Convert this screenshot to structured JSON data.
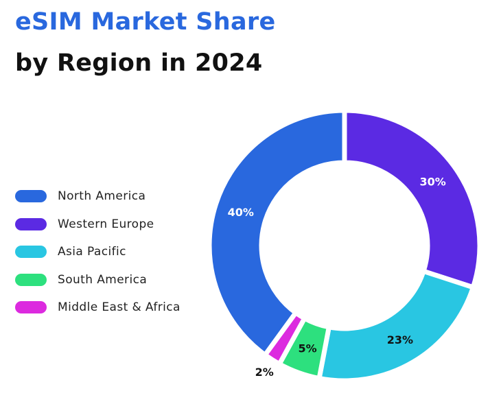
{
  "chart_data": {
    "type": "pie",
    "variant": "donut",
    "title": "eSIM Market Share",
    "subtitle": "by Region in 2024",
    "legend_position": "left",
    "slices": [
      {
        "label": "Western Europe",
        "value": 30,
        "display": "30%",
        "color": "#5B2AE3",
        "label_color": "#ffffff"
      },
      {
        "label": "Asia Pacific",
        "value": 23,
        "display": "23%",
        "color": "#29C6E2",
        "label_color": "#111111"
      },
      {
        "label": "South America",
        "value": 5,
        "display": "5%",
        "color": "#2DE07E",
        "label_color": "#111111"
      },
      {
        "label": "Middle East & Africa",
        "value": 2,
        "display": "2%",
        "color": "#DC2ADF",
        "label_color": "#111111",
        "label_outside": true
      },
      {
        "label": "North America",
        "value": 40,
        "display": "40%",
        "color": "#2968DE",
        "label_color": "#ffffff"
      }
    ],
    "legend": [
      {
        "label": "North America",
        "color": "#2968DE"
      },
      {
        "label": "Western Europe",
        "color": "#5B2AE3"
      },
      {
        "label": "Asia Pacific",
        "color": "#29C6E2"
      },
      {
        "label": "South America",
        "color": "#2DE07E"
      },
      {
        "label": "Middle East & Africa",
        "color": "#DC2ADF"
      }
    ]
  }
}
